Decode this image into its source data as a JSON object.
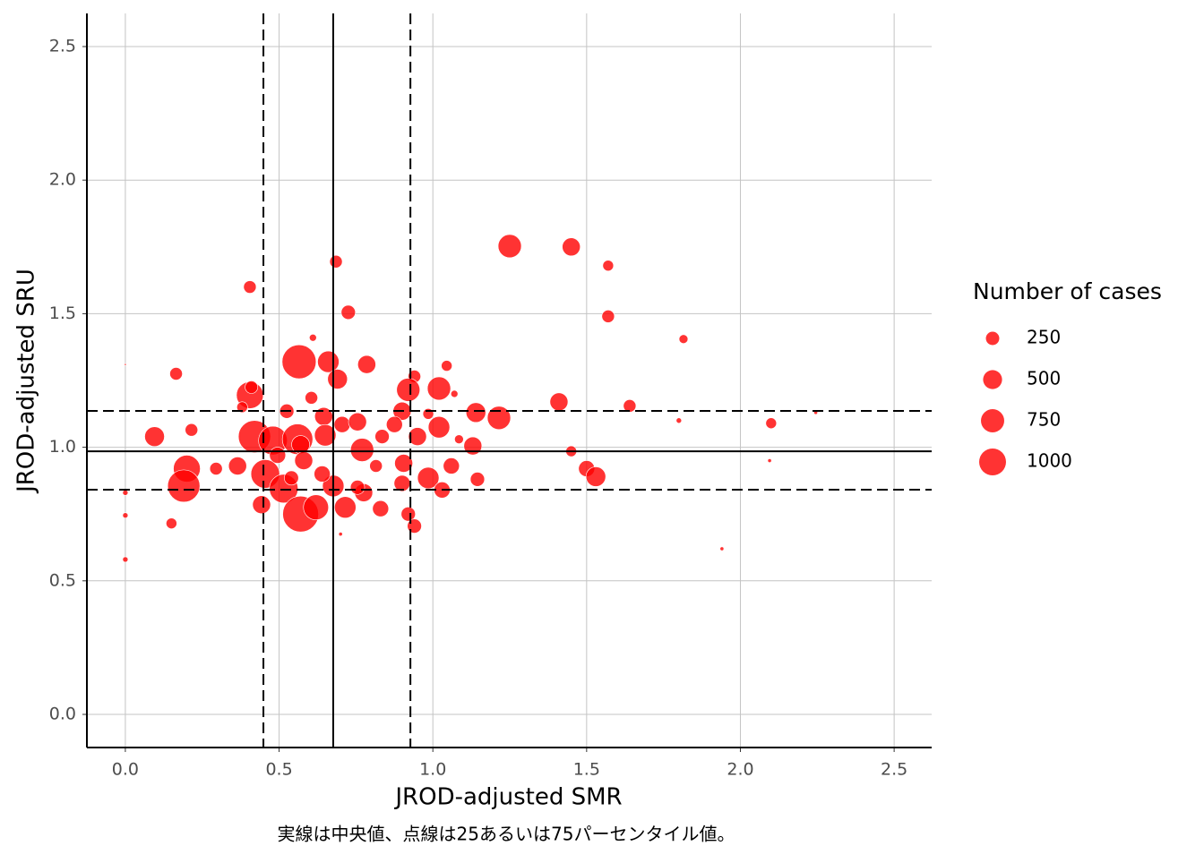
{
  "chart_data": {
    "type": "bubble",
    "x_label": "JROD-adjusted SMR",
    "y_label": "JROD-adjusted SRU",
    "caption": "実線は中央値、点線は25あるいは75パーセンタイル値。",
    "xlim": [
      -0.125,
      2.622
    ],
    "ylim": [
      -0.124,
      2.624
    ],
    "xticks": [
      {
        "value": 0,
        "label": "0.0"
      },
      0.5,
      {
        "value": 1,
        "label": "1.0"
      },
      1.5,
      {
        "value": 2,
        "label": "2.0"
      },
      2.5
    ],
    "yticks": [
      {
        "value": 0,
        "label": "0.0"
      },
      0.5,
      {
        "value": 1,
        "label": "1.0"
      },
      1.5,
      {
        "value": 2,
        "label": "2.0"
      },
      2.5
    ],
    "grid": true,
    "color": "#ff0000",
    "median_lines": {
      "x": 0.676,
      "y": 0.985
    },
    "quartile_lines": {
      "x": [
        0.449,
        0.927
      ],
      "y": [
        0.841,
        1.136
      ]
    },
    "size_legend": {
      "title": "Number of cases",
      "values": [
        250,
        500,
        750,
        1000
      ]
    },
    "series": [
      {
        "x": [
          1.25,
          1.45,
          1.57,
          0.685,
          0.405,
          0.725,
          1.57,
          1.815,
          0.61,
          0.565,
          0.66,
          0.785,
          1.045,
          0.165,
          0.94,
          0.69,
          0.405,
          0.41,
          0.92,
          1.02,
          0.605,
          1.41,
          1.64,
          1.215,
          1.14,
          0.525,
          0.985,
          0.9,
          0.645,
          0.705,
          0.755,
          1.02,
          0.875,
          0.215,
          1.8,
          2.1,
          2.245,
          0.095,
          0.42,
          0.48,
          0.56,
          0.65,
          0.835,
          0.95,
          1.085,
          1.13,
          1.45,
          0.77,
          0.57,
          0.2,
          0.365,
          0.295,
          0.455,
          0.905,
          1.06,
          1.5,
          1.53,
          0.985,
          1.145,
          0.19,
          0.515,
          0.676,
          0.9,
          1.03,
          0.775,
          0.0,
          0.57,
          0.62,
          0.715,
          0.443,
          0.83,
          0.92,
          0.94,
          0.15,
          0.0,
          0.0,
          1.94,
          2.095,
          0.7,
          0.0,
          0.38,
          0.495,
          0.58,
          0.815,
          0.755,
          0.64,
          0.54,
          1.07
        ],
        "values": [
          1.753,
          1.75,
          1.68,
          1.695,
          1.6,
          1.505,
          1.49,
          1.405,
          1.41,
          1.32,
          1.32,
          1.31,
          1.305,
          1.275,
          1.265,
          1.255,
          1.195,
          1.225,
          1.215,
          1.22,
          1.185,
          1.17,
          1.155,
          1.11,
          1.13,
          1.135,
          1.125,
          1.135,
          1.115,
          1.085,
          1.095,
          1.075,
          1.085,
          1.065,
          1.1,
          1.09,
          1.13,
          1.04,
          1.04,
          1.025,
          1.03,
          1.045,
          1.04,
          1.04,
          1.03,
          1.005,
          0.985,
          0.99,
          1.01,
          0.92,
          0.93,
          0.92,
          0.9,
          0.94,
          0.93,
          0.92,
          0.89,
          0.885,
          0.88,
          0.855,
          0.845,
          0.855,
          0.865,
          0.84,
          0.83,
          0.83,
          0.75,
          0.775,
          0.775,
          0.785,
          0.77,
          0.75,
          0.705,
          0.715,
          0.745,
          0.58,
          0.62,
          0.95,
          0.675,
          1.31,
          1.15,
          0.97,
          0.95,
          0.93,
          0.85,
          0.9,
          0.885,
          1.2
        ],
        "sizes": [
          750,
          450,
          160,
          220,
          220,
          280,
          220,
          110,
          70,
          1600,
          640,
          450,
          160,
          220,
          220,
          540,
          1000,
          220,
          750,
          750,
          220,
          450,
          220,
          750,
          540,
          280,
          160,
          450,
          450,
          360,
          450,
          640,
          360,
          220,
          40,
          160,
          20,
          540,
          1440,
          1140,
          1290,
          640,
          280,
          450,
          110,
          450,
          160,
          750,
          450,
          1000,
          450,
          220,
          1140,
          450,
          360,
          360,
          540,
          640,
          280,
          1440,
          1140,
          640,
          360,
          360,
          450,
          40,
          1780,
          870,
          640,
          450,
          360,
          280,
          280,
          160,
          40,
          40,
          20,
          20,
          20,
          5,
          160,
          360,
          450,
          220,
          280,
          360,
          280,
          70
        ]
      }
    ]
  }
}
